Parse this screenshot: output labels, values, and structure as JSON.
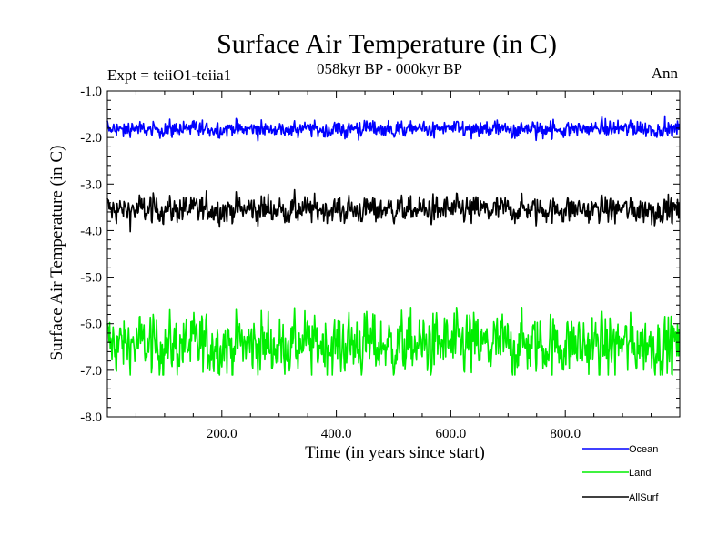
{
  "chart_data": {
    "type": "line",
    "title": "Surface Air Temperature (in C)",
    "subtitle": "058kyr BP - 000kyr BP",
    "left_annotation": "Expt = teiiO1-teiia1",
    "right_annotation": "Ann",
    "xlabel": "Time (in years since start)",
    "ylabel": "Surface Air Temperature (in C)",
    "xlim": [
      0,
      1000
    ],
    "ylim": [
      -8.0,
      -1.0
    ],
    "x_ticks": [
      200,
      400,
      600,
      800
    ],
    "x_tick_labels": [
      "200.0",
      "400.0",
      "600.0",
      "800.0"
    ],
    "y_ticks": [
      -1.0,
      -2.0,
      -3.0,
      -4.0,
      -5.0,
      -6.0,
      -7.0,
      -8.0
    ],
    "y_tick_labels": [
      "-1.0",
      "-2.0",
      "-3.0",
      "-4.0",
      "-5.0",
      "-6.0",
      "-7.0",
      "-8.0"
    ],
    "grid": false,
    "legend_position": "bottom-right, below plot",
    "series": [
      {
        "name": "Ocean",
        "color": "#0000ff",
        "mean": -1.82,
        "range": [
          -2.3,
          -1.38
        ],
        "n_points": 1000
      },
      {
        "name": "Land",
        "color": "#00ee00",
        "mean": -6.45,
        "range": [
          -7.1,
          -5.65
        ],
        "n_points": 1000
      },
      {
        "name": "AllSurf",
        "color": "#000000",
        "mean": -3.55,
        "range": [
          -4.05,
          -3.08
        ],
        "n_points": 1000
      }
    ]
  }
}
